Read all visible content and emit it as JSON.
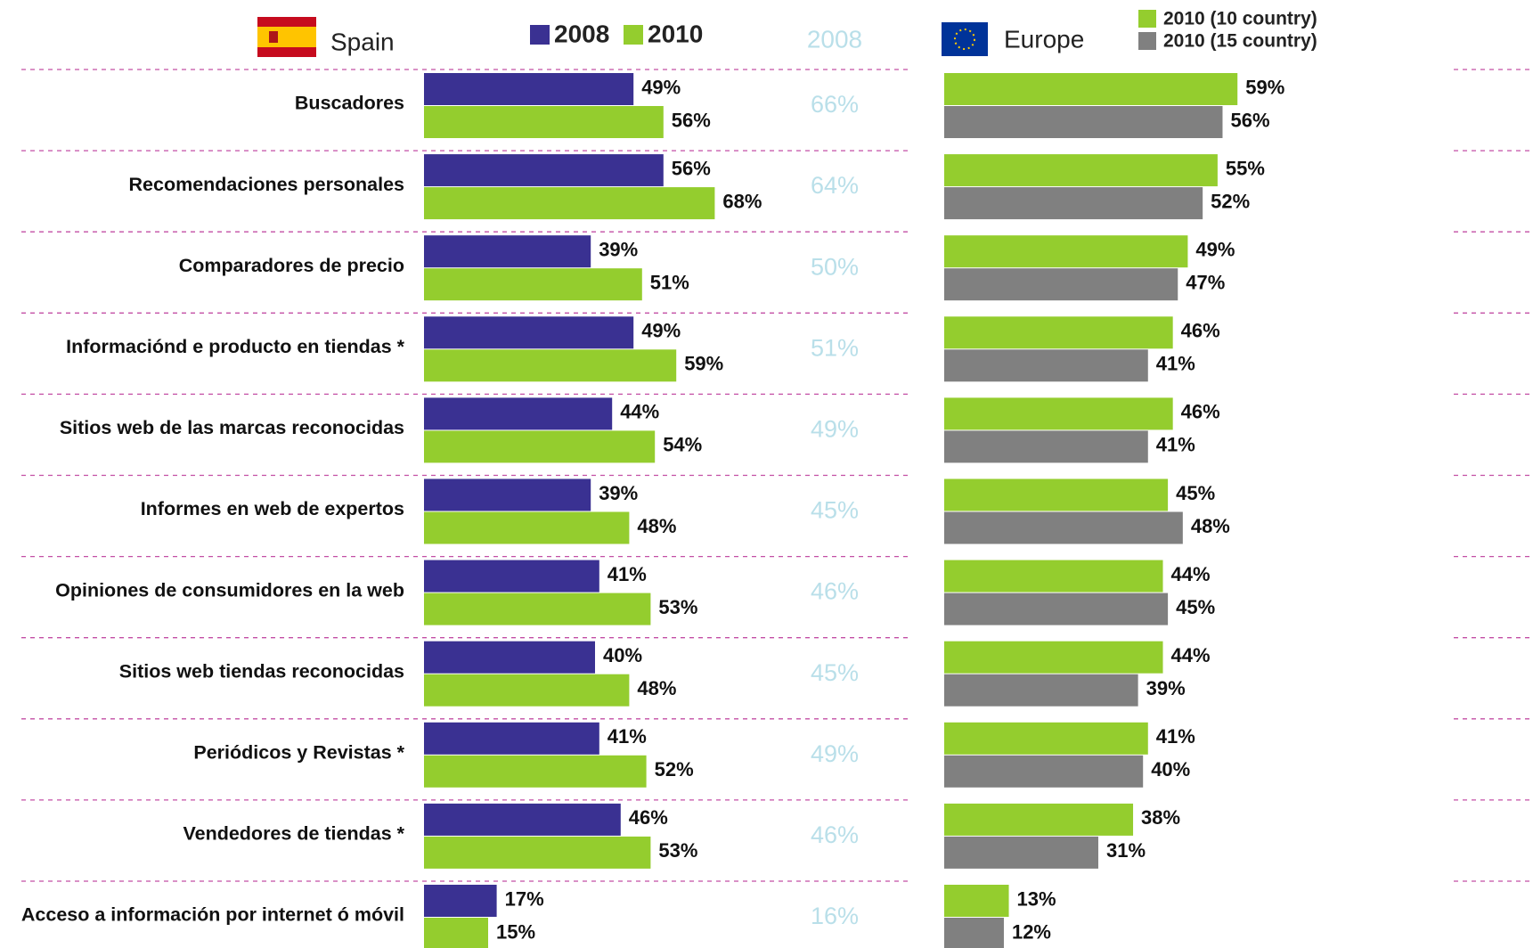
{
  "chart_data": [
    {
      "type": "bar",
      "orientation": "horizontal",
      "title": "Spain",
      "categories": [
        "Buscadores",
        "Recomendaciones personales",
        "Comparadores de precio",
        "Informaciónd e producto en tiendas *",
        "Sitios web de las marcas reconocidas",
        "Informes en web de expertos",
        "Opiniones de consumidores en la web",
        "Sitios web tiendas reconocidas",
        "Periódicos y Revistas *",
        "Vendedores de tiendas *",
        "Acceso a información por internet ó móvil"
      ],
      "series": [
        {
          "name": "2008",
          "color": "#3a3192",
          "values": [
            49,
            56,
            39,
            49,
            44,
            39,
            41,
            40,
            41,
            46,
            17
          ],
          "value_labels": [
            "49%",
            "56%",
            "39%",
            "49%",
            "44%",
            "39%",
            "41%",
            "40%",
            "41%",
            "46%",
            "17%"
          ]
        },
        {
          "name": "2010",
          "color": "#94cd2e",
          "values": [
            56,
            68,
            51,
            59,
            54,
            48,
            53,
            48,
            52,
            53,
            15
          ],
          "value_labels": [
            "56%",
            "68%",
            "51%",
            "59%",
            "54%",
            "48%",
            "53%",
            "48%",
            "52%",
            "53%",
            "15%"
          ]
        }
      ]
    },
    {
      "type": "bar",
      "orientation": "horizontal",
      "title": "Europe",
      "reference_series": {
        "name": "2008",
        "color": "#b9dfe9",
        "values": [
          66,
          64,
          50,
          51,
          49,
          45,
          46,
          45,
          49,
          46,
          16
        ],
        "value_labels": [
          "66%",
          "64%",
          "50%",
          "51%",
          "49%",
          "45%",
          "46%",
          "45%",
          "49%",
          "46%",
          "16%"
        ]
      },
      "series": [
        {
          "name": "2010 (10 country)",
          "color": "#94cd2e",
          "values": [
            59,
            55,
            49,
            46,
            46,
            45,
            44,
            44,
            41,
            38,
            13
          ],
          "value_labels": [
            "59%",
            "55%",
            "49%",
            "46%",
            "46%",
            "45%",
            "44%",
            "44%",
            "41%",
            "38%",
            "13%"
          ]
        },
        {
          "name": "2010 (15 country)",
          "color": "#808080",
          "values": [
            56,
            52,
            47,
            41,
            41,
            48,
            45,
            39,
            40,
            31,
            12
          ],
          "value_labels": [
            "56%",
            "52%",
            "47%",
            "41%",
            "41%",
            "48%",
            "45%",
            "39%",
            "40%",
            "31%",
            "12%"
          ]
        }
      ]
    }
  ]
}
